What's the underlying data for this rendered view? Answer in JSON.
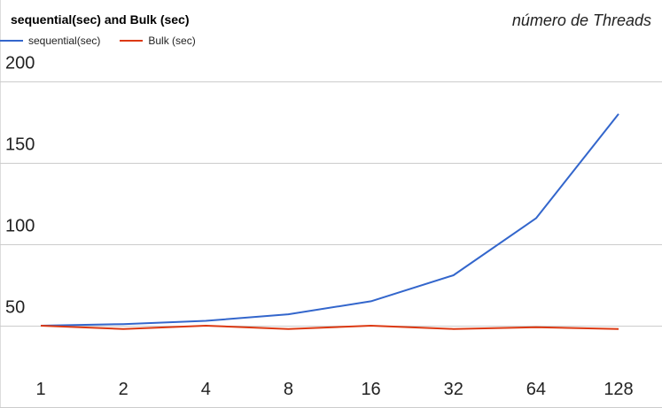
{
  "chart_data": {
    "type": "line",
    "title": "sequential(sec) and Bulk (sec)",
    "xlabel": "número de Threads",
    "ylabel": "",
    "categories": [
      "1",
      "2",
      "4",
      "8",
      "16",
      "32",
      "64",
      "128"
    ],
    "series": [
      {
        "name": "sequential(sec)",
        "color": "#3366cc",
        "values": [
          50,
          51,
          53,
          57,
          65,
          81,
          116,
          180
        ]
      },
      {
        "name": "Bulk (sec)",
        "color": "#dc3912",
        "values": [
          50,
          48,
          50,
          48,
          50,
          48,
          49,
          48
        ]
      }
    ],
    "yticks": [
      200,
      150,
      100,
      50
    ],
    "ylim": [
      50,
      200
    ],
    "grid": true,
    "legend_position": "top-left"
  }
}
